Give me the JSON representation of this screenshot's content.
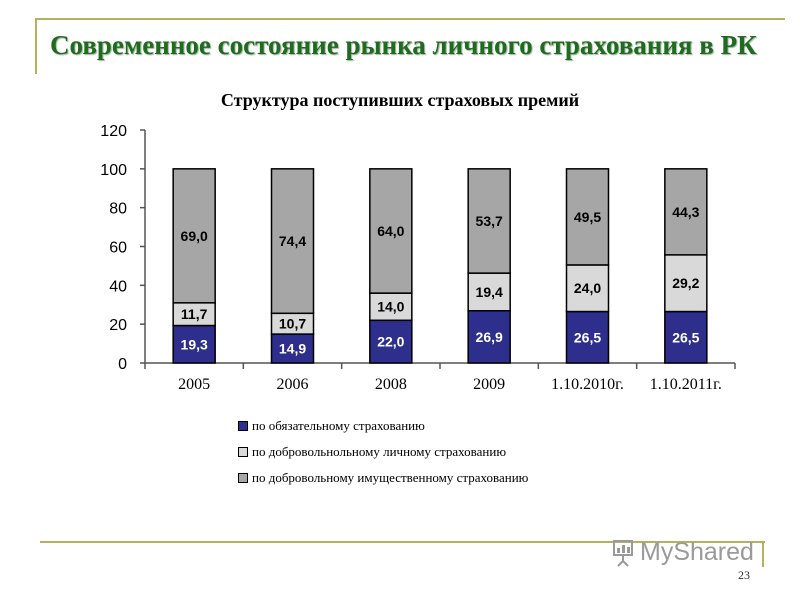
{
  "slide": {
    "title": "Современное состояние рынка личного страхования в РК",
    "page_number": "23",
    "watermark": "MyShared"
  },
  "colors": {
    "title": "#1f6b1f",
    "mandatory": "#2e2e8c",
    "voluntary_personal": "#d9d9d9",
    "voluntary_property": "#a6a6a6",
    "rule": "#b8b05a"
  },
  "chart_data": {
    "type": "bar",
    "stacked": true,
    "title": "Структура поступивших страховых премий",
    "categories": [
      "2005",
      "2006",
      "2008",
      "2009",
      "1.10.2010г.",
      "1.10.2011г."
    ],
    "ylim": [
      0,
      120
    ],
    "yticks": [
      0,
      20,
      40,
      60,
      80,
      100,
      120
    ],
    "grid": false,
    "legend_position": "bottom",
    "series": [
      {
        "name": "по обязательному страхованию",
        "color": "#2e2e8c",
        "values": [
          19.3,
          14.9,
          22.0,
          26.9,
          26.5,
          26.5
        ],
        "labels": [
          "19,3",
          "14,9",
          "22,0",
          "26,9",
          "26,5",
          "26,5"
        ]
      },
      {
        "name": "по добровольнольному личному страхованию",
        "color": "#d9d9d9",
        "values": [
          11.7,
          10.7,
          14.0,
          19.4,
          24.0,
          29.2
        ],
        "labels": [
          "11,7",
          "10,7",
          "14,0",
          "19,4",
          "24,0",
          "29,2"
        ]
      },
      {
        "name": "по добровольному имущественному страхованию",
        "color": "#a6a6a6",
        "values": [
          69.0,
          74.4,
          64.0,
          53.7,
          49.5,
          44.3
        ],
        "labels": [
          "69,0",
          "74,4",
          "64,0",
          "53,7",
          "49,5",
          "44,3"
        ]
      }
    ]
  }
}
